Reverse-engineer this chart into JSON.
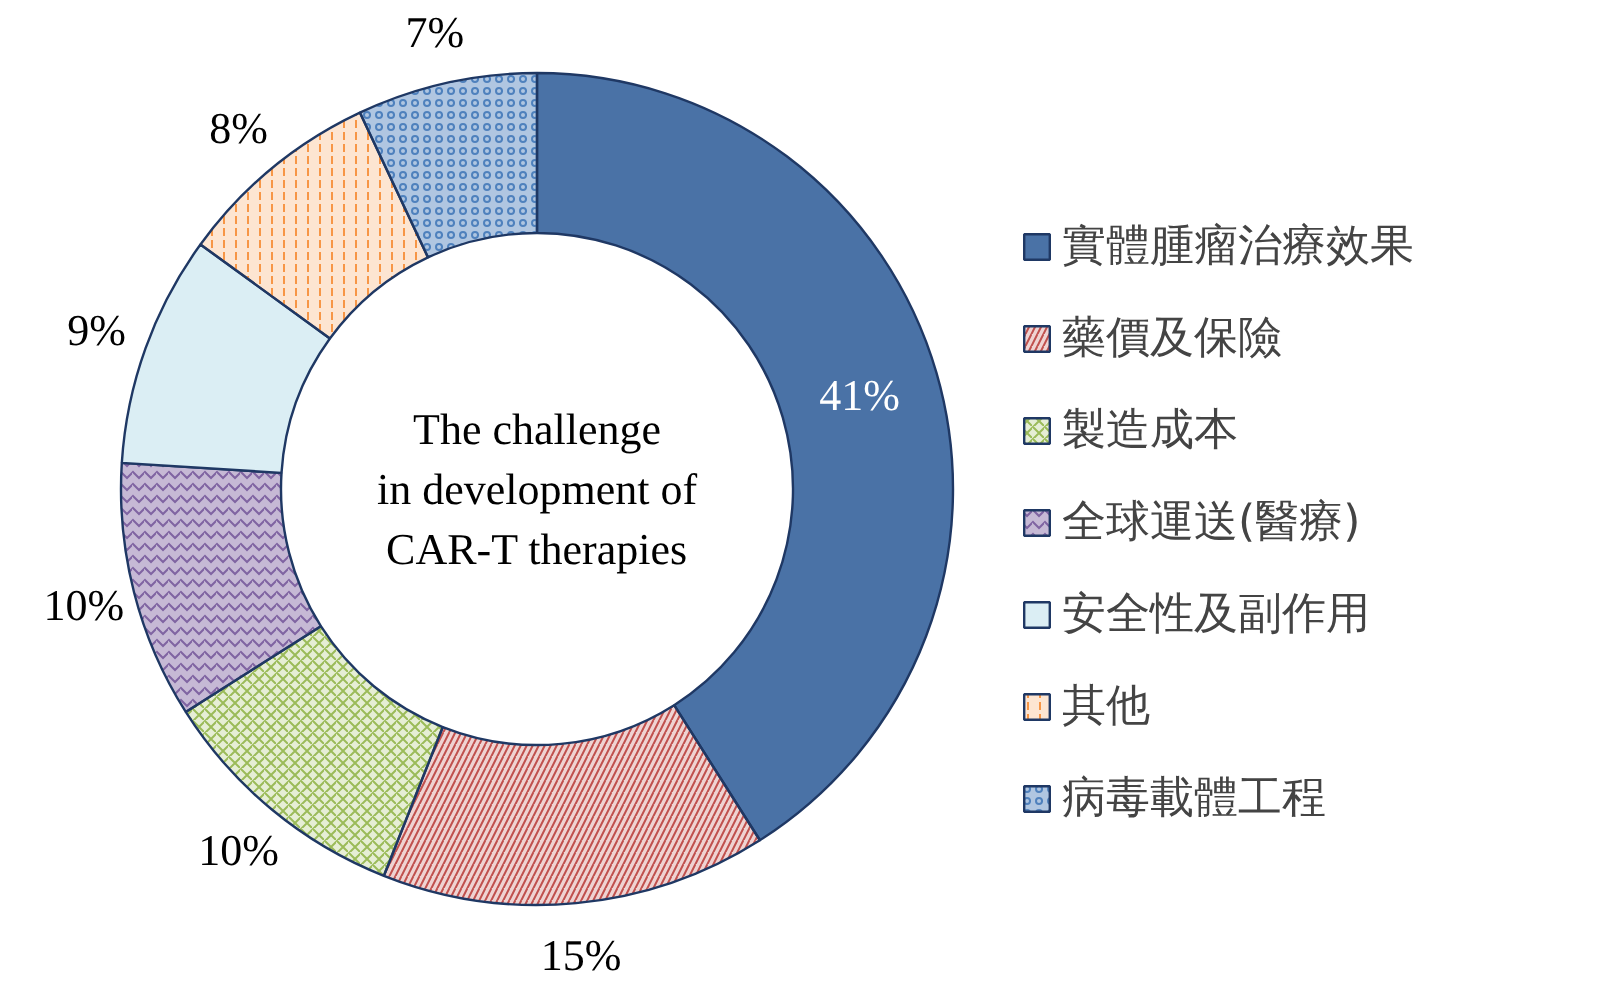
{
  "chart_data": {
    "type": "donut",
    "title": "The challenge\nin development of\nCAR-T therapies",
    "categories": [
      "實體腫瘤治療效果",
      "藥價及保險",
      "製造成本",
      "全球運送(醫療)",
      "安全性及副作用",
      "其他",
      "病毒載體工程"
    ],
    "values": [
      41,
      15,
      10,
      10,
      9,
      8,
      7
    ],
    "value_labels": [
      "41%",
      "15%",
      "10%",
      "10%",
      "9%",
      "8%",
      "7%"
    ],
    "colors": [
      "#4a72a6",
      "#c0504d",
      "#9bbb59",
      "#8064a2",
      "#dbeef4",
      "#f79646",
      "#4f81bd"
    ],
    "legend": "right"
  }
}
